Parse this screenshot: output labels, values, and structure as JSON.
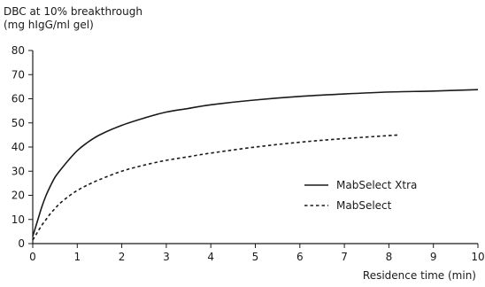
{
  "chart_data": {
    "type": "line",
    "ylabel_line1": "DBC at 10% breakthrough",
    "ylabel_line2": "(mg hIgG/ml gel)",
    "xlabel": "Residence time (min)",
    "xlim": [
      0,
      10
    ],
    "ylim": [
      0,
      80
    ],
    "x_ticks": [
      "0",
      "1",
      "2",
      "3",
      "4",
      "5",
      "6",
      "7",
      "8",
      "9",
      "10"
    ],
    "y_ticks": [
      "0",
      "10",
      "20",
      "30",
      "40",
      "50",
      "60",
      "70",
      "80"
    ],
    "grid": false,
    "legend_placement": "right-middle",
    "series": [
      {
        "name": "MabSelect Xtra",
        "style": "solid",
        "color": "#1a1a1a",
        "x": [
          0,
          0.1,
          0.2,
          0.3,
          0.4,
          0.5,
          0.6,
          0.8,
          1.0,
          1.2,
          1.5,
          2.0,
          2.5,
          3.0,
          3.5,
          4.0,
          5.0,
          6.0,
          7.0,
          8.0,
          9.0,
          10.0
        ],
        "y": [
          3,
          9,
          15,
          20,
          24,
          27.5,
          30,
          34.5,
          38.5,
          41.5,
          45,
          49,
          52,
          54.5,
          56,
          57.5,
          59.5,
          61,
          62,
          62.8,
          63.2,
          63.8
        ]
      },
      {
        "name": "MabSelect",
        "style": "dashed",
        "color": "#1a1a1a",
        "x": [
          0,
          0.1,
          0.2,
          0.3,
          0.4,
          0.5,
          0.6,
          0.8,
          1.0,
          1.2,
          1.5,
          2.0,
          2.5,
          3.0,
          3.5,
          4.0,
          5.0,
          6.0,
          7.0,
          8.2
        ],
        "y": [
          1.5,
          4.5,
          7.5,
          10,
          12.5,
          14.5,
          16.5,
          19.5,
          22,
          24,
          26.5,
          30,
          32.5,
          34.5,
          36,
          37.5,
          40,
          42,
          43.5,
          45
        ]
      }
    ]
  }
}
